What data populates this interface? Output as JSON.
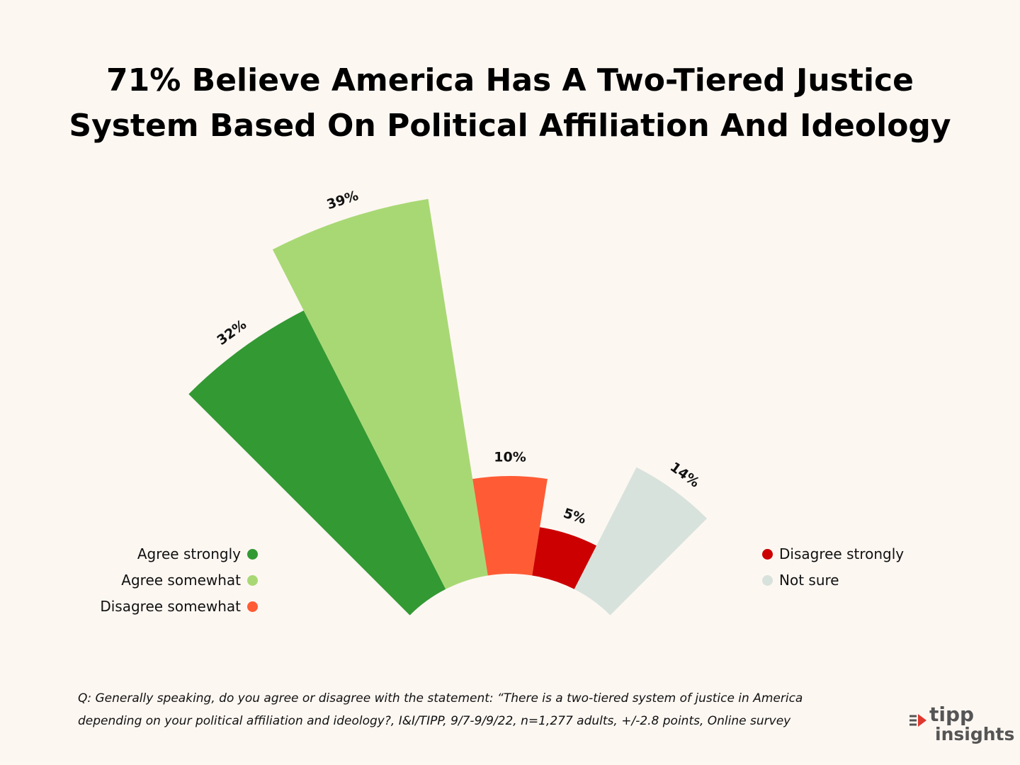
{
  "chart_data": {
    "type": "polar-bar",
    "title_lines": [
      "71% Believe America Has A Two-Tiered Justice",
      "System Based On Political Affiliation And Ideology"
    ],
    "series": [
      {
        "name": "Agree strongly",
        "value": 32,
        "label": "32%",
        "color": "#339933"
      },
      {
        "name": "Agree somewhat",
        "value": 39,
        "label": "39%",
        "color": "#A8D874"
      },
      {
        "name": "Disagree somewhat",
        "value": 10,
        "label": "10%",
        "color": "#FF5C35"
      },
      {
        "name": "Disagree strongly",
        "value": 5,
        "label": "5%",
        "color": "#CC0000"
      },
      {
        "name": "Not sure",
        "value": 14,
        "label": "14%",
        "color": "#D8E2DC"
      }
    ],
    "legend_left": [
      "Agree strongly",
      "Agree somewhat",
      "Disagree somewhat"
    ],
    "legend_right": [
      "Disagree strongly",
      "Not sure"
    ]
  },
  "footnote": {
    "line1": "Q: Generally speaking, do you agree or disagree with the statement: “There is a two-tiered system of  justice in America",
    "line2": "depending on your political affiliation and ideology?, I&I/TIPP, 9/7-9/9/22, n=1,277 adults, +/-2.8 points, Online survey"
  },
  "logo": {
    "word1": "tipp",
    "word2": "insights",
    "color": "#555555",
    "accent": "#E0382E"
  }
}
